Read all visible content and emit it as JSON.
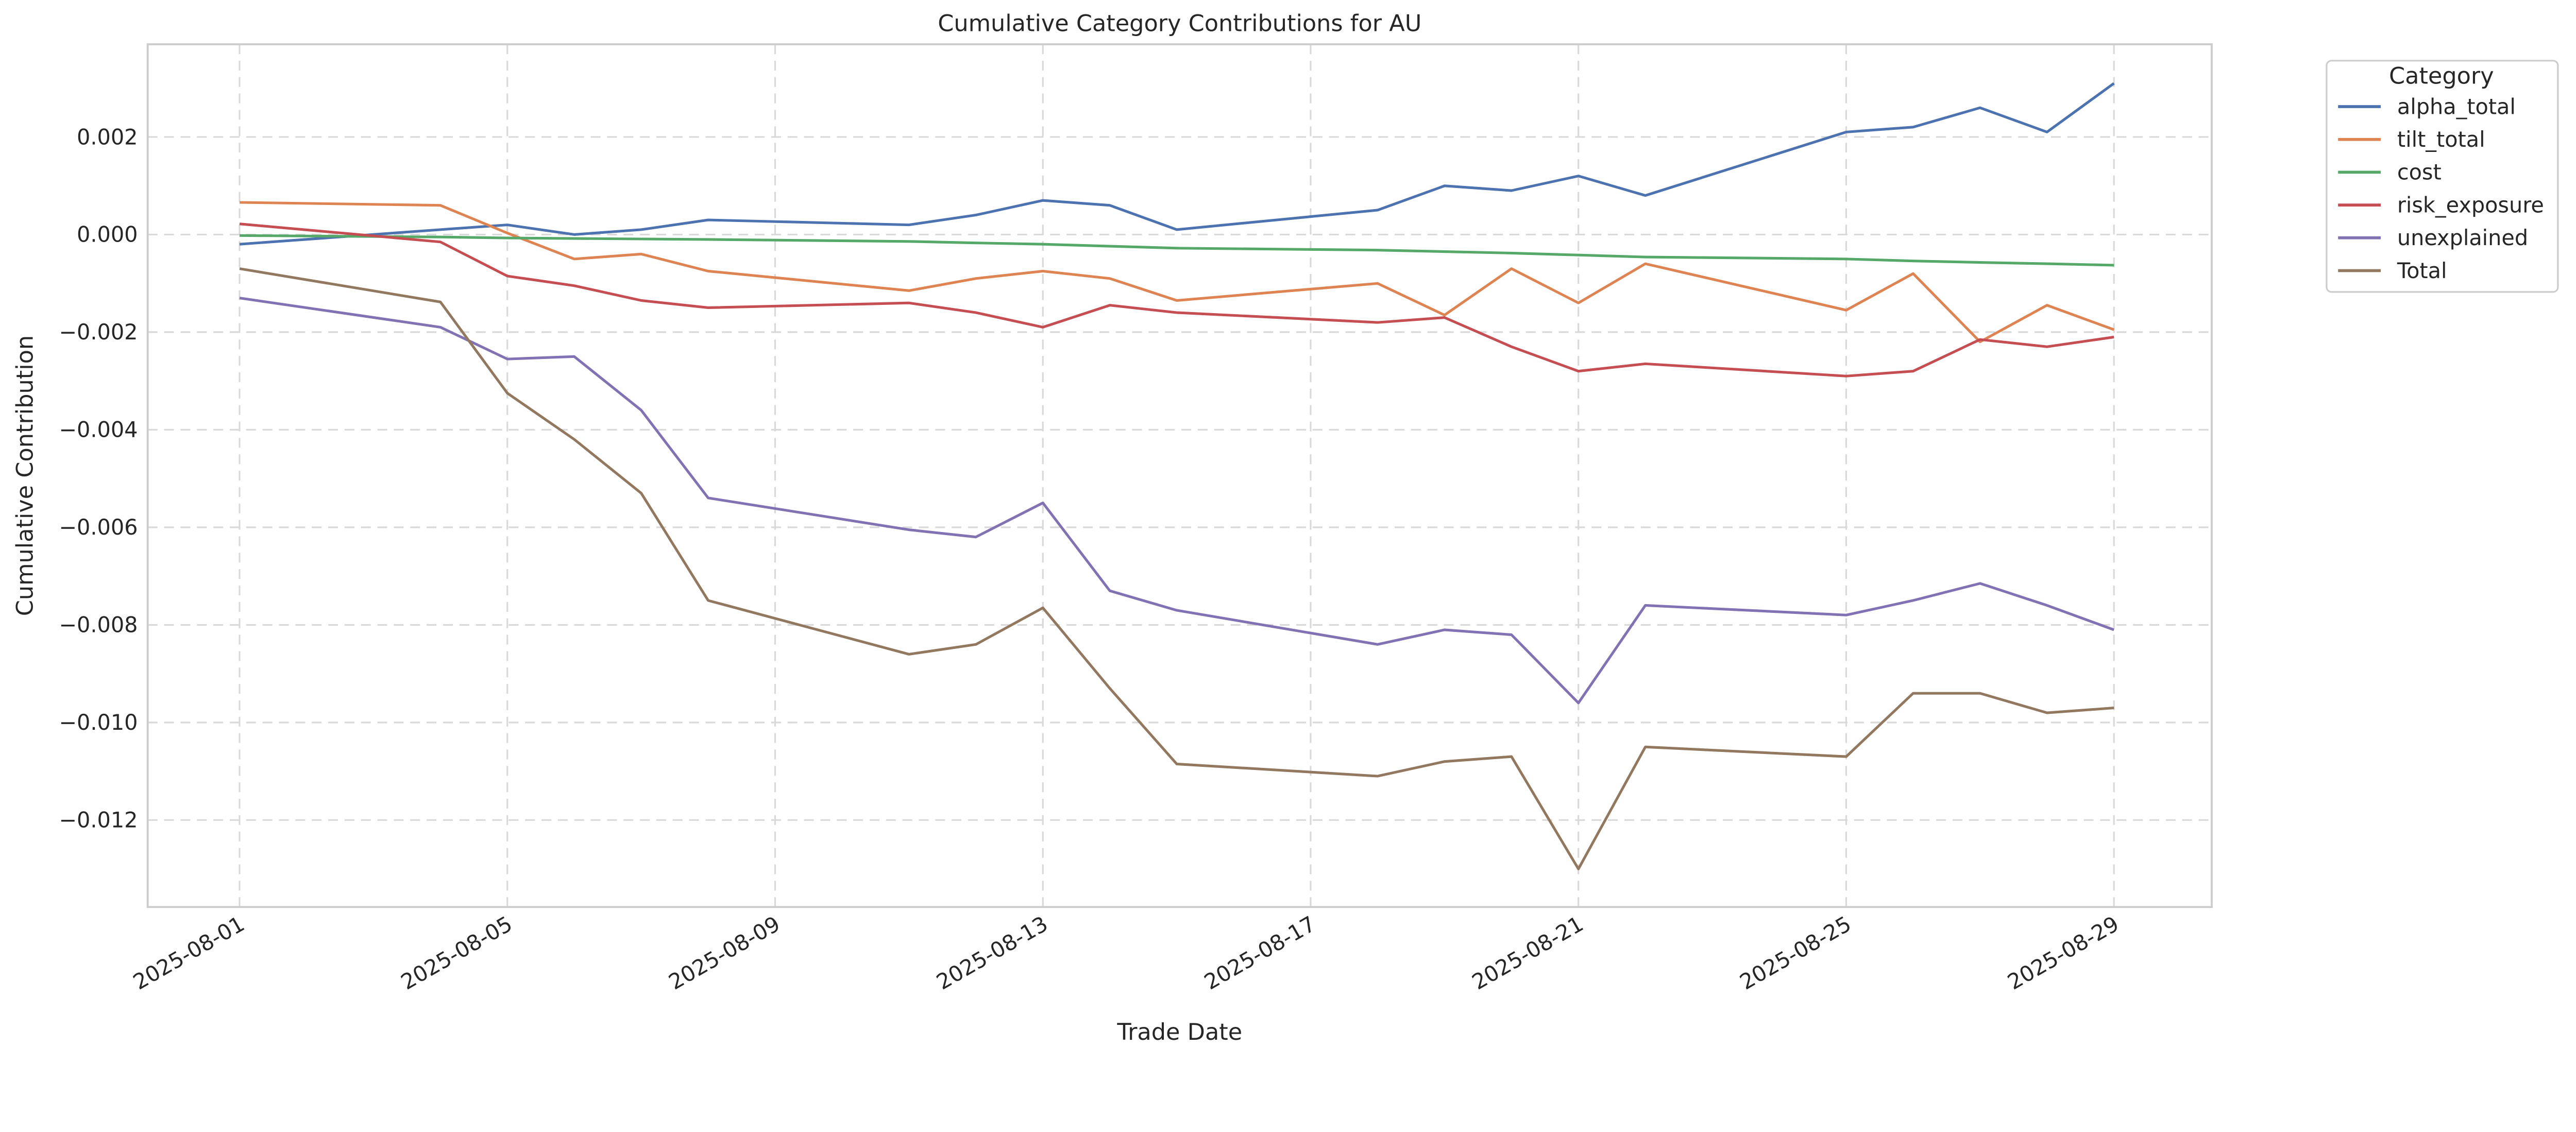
{
  "chart_data": {
    "type": "line",
    "title": "Cumulative Category Contributions for AU",
    "xlabel": "Trade Date",
    "ylabel": "Cumulative Contribution",
    "ylim": [
      -0.0138,
      0.0039
    ],
    "grid": true,
    "legend": {
      "title": "Category",
      "placement": "outside-top-right"
    },
    "x": [
      "2025-08-01",
      "2025-08-04",
      "2025-08-05",
      "2025-08-06",
      "2025-08-07",
      "2025-08-08",
      "2025-08-11",
      "2025-08-12",
      "2025-08-13",
      "2025-08-14",
      "2025-08-15",
      "2025-08-18",
      "2025-08-19",
      "2025-08-20",
      "2025-08-21",
      "2025-08-22",
      "2025-08-25",
      "2025-08-26",
      "2025-08-27",
      "2025-08-28",
      "2025-08-29"
    ],
    "x_ticks": [
      "2025-08-01",
      "2025-08-05",
      "2025-08-09",
      "2025-08-13",
      "2025-08-17",
      "2025-08-21",
      "2025-08-25",
      "2025-08-29"
    ],
    "y_ticks": [
      0.002,
      0.0,
      -0.002,
      -0.004,
      -0.006,
      -0.008,
      -0.01,
      -0.012
    ],
    "y_tick_labels": [
      "0.002",
      "0.000",
      "−0.002",
      "−0.004",
      "−0.006",
      "−0.008",
      "−0.010",
      "−0.012"
    ],
    "series": [
      {
        "name": "alpha_total",
        "color": "#4c72b0",
        "values": [
          -0.0002,
          0.0001,
          0.0002,
          0.0,
          0.0001,
          0.0003,
          0.0002,
          0.0004,
          0.0007,
          0.0006,
          0.0001,
          0.0005,
          0.001,
          0.0009,
          0.0012,
          0.0008,
          0.0021,
          0.0022,
          0.0026,
          0.0021,
          0.0031
        ]
      },
      {
        "name": "tilt_total",
        "color": "#dd8452",
        "values": [
          0.00066,
          0.0006,
          3e-05,
          -0.0005,
          -0.0004,
          -0.00075,
          -0.00115,
          -0.0009,
          -0.00075,
          -0.0009,
          -0.00135,
          -0.001,
          -0.00165,
          -0.0007,
          -0.0014,
          -0.0006,
          -0.00155,
          -0.0008,
          -0.0022,
          -0.00145,
          -0.00195
        ]
      },
      {
        "name": "cost",
        "color": "#55a868",
        "values": [
          -2e-05,
          -5e-05,
          -7e-05,
          -8e-05,
          -9e-05,
          -0.0001,
          -0.00014,
          -0.00017,
          -0.0002,
          -0.00024,
          -0.00028,
          -0.00032,
          -0.00035,
          -0.00038,
          -0.00042,
          -0.00046,
          -0.0005,
          -0.00054,
          -0.00057,
          -0.0006,
          -0.00063
        ]
      },
      {
        "name": "risk_exposure",
        "color": "#c44e52",
        "values": [
          0.00022,
          -0.00015,
          -0.00085,
          -0.00105,
          -0.00135,
          -0.0015,
          -0.0014,
          -0.0016,
          -0.0019,
          -0.00145,
          -0.0016,
          -0.0018,
          -0.0017,
          -0.0023,
          -0.0028,
          -0.00265,
          -0.0029,
          -0.0028,
          -0.00215,
          -0.0023,
          -0.0021
        ]
      },
      {
        "name": "unexplained",
        "color": "#8172b3",
        "values": [
          -0.0013,
          -0.0019,
          -0.00255,
          -0.0025,
          -0.0036,
          -0.0054,
          -0.00605,
          -0.0062,
          -0.0055,
          -0.0073,
          -0.0077,
          -0.0084,
          -0.0081,
          -0.0082,
          -0.0096,
          -0.0076,
          -0.0078,
          -0.0075,
          -0.00715,
          -0.0076,
          -0.0081
        ]
      },
      {
        "name": "Total",
        "color": "#937860",
        "values": [
          -0.0007,
          -0.00138,
          -0.00325,
          -0.0042,
          -0.0053,
          -0.0075,
          -0.0086,
          -0.0084,
          -0.00765,
          -0.0093,
          -0.01085,
          -0.0111,
          -0.0108,
          -0.0107,
          -0.013,
          -0.0105,
          -0.0107,
          -0.0094,
          -0.0094,
          -0.0098,
          -0.0097
        ]
      }
    ]
  }
}
